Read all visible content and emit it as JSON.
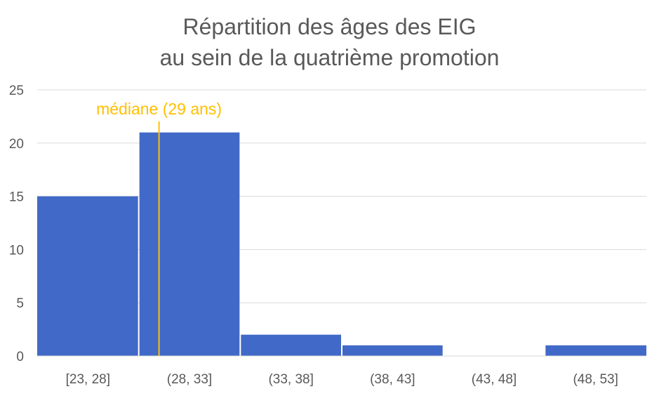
{
  "chart_data": {
    "type": "bar",
    "title_lines": [
      "Répartition des âges des EIG",
      "au sein de la quatrième promotion"
    ],
    "xlabel": "",
    "ylabel": "",
    "categories": [
      "[23, 28]",
      "(28, 33]",
      "(33, 38]",
      "(38, 43]",
      "(43, 48]",
      "(48, 53]"
    ],
    "values": [
      15,
      21,
      2,
      1,
      0,
      1
    ],
    "ylim": [
      0,
      25
    ],
    "yticks": [
      0,
      5,
      10,
      15,
      20,
      25
    ],
    "grid": true,
    "bar_color": "#4169C8",
    "annotation": {
      "label": "médiane (29 ans)",
      "x_value": 29,
      "color": "#FFC000"
    }
  }
}
